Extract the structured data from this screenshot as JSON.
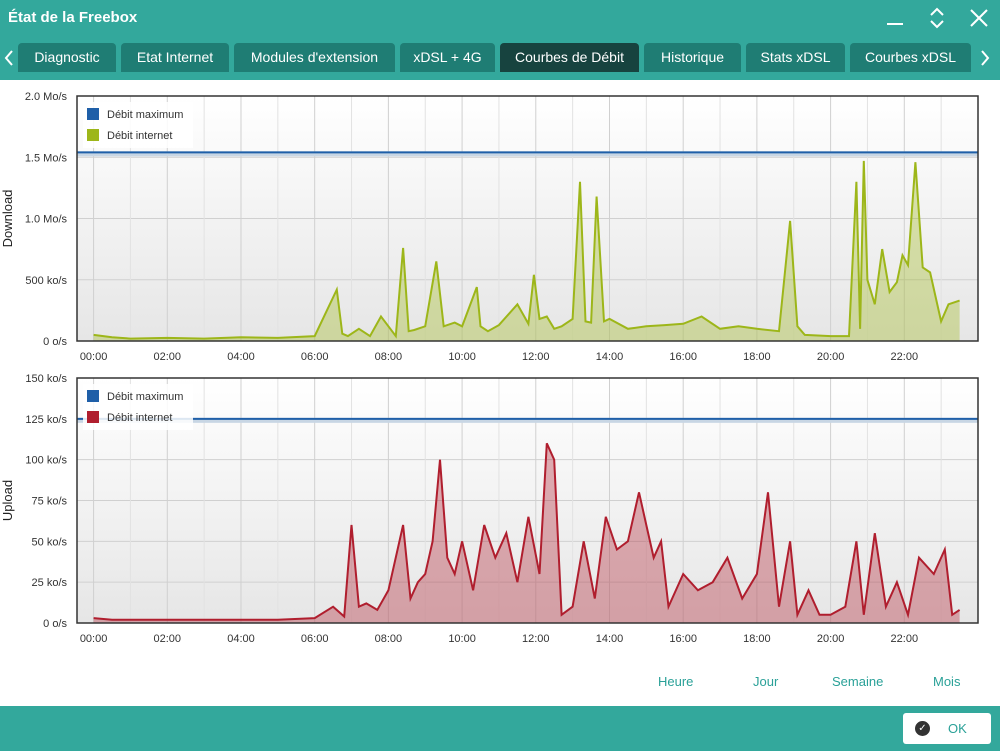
{
  "window": {
    "title": "État de la Freebox"
  },
  "tabs": [
    {
      "label": "Diagnostic"
    },
    {
      "label": "Etat Internet"
    },
    {
      "label": "Modules d'extension"
    },
    {
      "label": "xDSL + 4G"
    },
    {
      "label": "Courbes de Débit",
      "active": true
    },
    {
      "label": "Historique"
    },
    {
      "label": "Stats xDSL"
    },
    {
      "label": "Courbes xDSL"
    }
  ],
  "colors": {
    "accent": "#33a89c",
    "tab": "#1f7d74",
    "tab_active": "#17433f",
    "max_line": "#1f5fa8",
    "download": "#9db619",
    "upload": "#b01e2e"
  },
  "chart_data": [
    {
      "type": "area",
      "ylabel": "Download",
      "y_ticks": [
        "0 o/s",
        "500 ko/s",
        "1.0 Mo/s",
        "1.5 Mo/s",
        "2.0 Mo/s"
      ],
      "ylim": [
        0,
        2000
      ],
      "x_ticks": [
        "00:00",
        "02:00",
        "04:00",
        "06:00",
        "08:00",
        "10:00",
        "12:00",
        "14:00",
        "16:00",
        "18:00",
        "20:00",
        "22:00"
      ],
      "xlim": [
        0,
        24
      ],
      "legend": [
        {
          "name": "Débit maximum",
          "color": "#1f5fa8"
        },
        {
          "name": "Débit internet",
          "color": "#9db619"
        }
      ],
      "max_value": 1540,
      "series": [
        {
          "name": "Débit internet",
          "x": [
            0,
            0.5,
            1,
            2,
            3,
            4,
            5,
            6,
            6.6,
            6.75,
            6.9,
            7.2,
            7.5,
            7.8,
            8.2,
            8.4,
            8.55,
            8.7,
            9,
            9.3,
            9.5,
            9.8,
            10,
            10.4,
            10.5,
            10.7,
            11,
            11.5,
            11.8,
            11.95,
            12.1,
            12.3,
            12.5,
            12.7,
            13,
            13.2,
            13.35,
            13.5,
            13.65,
            13.85,
            14,
            14.5,
            15,
            15.5,
            16,
            16.5,
            17,
            17.5,
            18,
            18.6,
            18.9,
            19.1,
            19.3,
            20,
            20.5,
            20.7,
            20.8,
            20.9,
            21,
            21.2,
            21.4,
            21.6,
            21.8,
            21.95,
            22.1,
            22.3,
            22.5,
            22.7,
            23,
            23.2,
            23.5
          ],
          "values": [
            50,
            30,
            20,
            25,
            20,
            30,
            25,
            40,
            420,
            60,
            40,
            100,
            40,
            200,
            40,
            760,
            80,
            90,
            120,
            650,
            120,
            150,
            120,
            440,
            120,
            80,
            130,
            300,
            140,
            540,
            180,
            200,
            100,
            120,
            180,
            1300,
            160,
            150,
            1180,
            160,
            180,
            100,
            120,
            130,
            140,
            200,
            100,
            120,
            100,
            80,
            980,
            120,
            50,
            40,
            40,
            1300,
            100,
            1470,
            500,
            300,
            750,
            400,
            480,
            700,
            620,
            1460,
            600,
            560,
            160,
            300,
            330
          ]
        }
      ]
    },
    {
      "type": "area",
      "ylabel": "Upload",
      "y_ticks": [
        "0 o/s",
        "25 ko/s",
        "50 ko/s",
        "75 ko/s",
        "100 ko/s",
        "125 ko/s",
        "150 ko/s"
      ],
      "ylim": [
        0,
        150
      ],
      "x_ticks": [
        "00:00",
        "02:00",
        "04:00",
        "06:00",
        "08:00",
        "10:00",
        "12:00",
        "14:00",
        "16:00",
        "18:00",
        "20:00",
        "22:00"
      ],
      "xlim": [
        0,
        24
      ],
      "legend": [
        {
          "name": "Débit maximum",
          "color": "#1f5fa8"
        },
        {
          "name": "Débit internet",
          "color": "#b01e2e"
        }
      ],
      "max_value": 125,
      "series": [
        {
          "name": "Débit internet",
          "x": [
            0,
            0.5,
            1,
            2,
            3,
            4,
            5,
            6,
            6.5,
            6.8,
            7.0,
            7.2,
            7.4,
            7.7,
            8.0,
            8.4,
            8.6,
            8.8,
            9.0,
            9.2,
            9.4,
            9.6,
            9.8,
            10.0,
            10.3,
            10.6,
            10.9,
            11.2,
            11.5,
            11.8,
            12.1,
            12.3,
            12.5,
            12.7,
            13,
            13.3,
            13.6,
            13.9,
            14.2,
            14.5,
            14.8,
            15.0,
            15.2,
            15.4,
            15.6,
            16,
            16.4,
            16.8,
            17.2,
            17.6,
            18.0,
            18.3,
            18.6,
            18.9,
            19.1,
            19.4,
            19.7,
            20,
            20.4,
            20.7,
            20.9,
            21.2,
            21.5,
            21.8,
            22.1,
            22.4,
            22.8,
            23.1,
            23.3,
            23.5
          ],
          "values": [
            3,
            2,
            2,
            2,
            2,
            2,
            2,
            3,
            10,
            4,
            60,
            10,
            12,
            8,
            20,
            60,
            15,
            25,
            30,
            50,
            100,
            40,
            30,
            50,
            20,
            60,
            40,
            55,
            25,
            65,
            30,
            110,
            100,
            5,
            10,
            50,
            15,
            65,
            45,
            50,
            80,
            60,
            40,
            50,
            10,
            30,
            20,
            25,
            40,
            15,
            30,
            80,
            10,
            50,
            5,
            20,
            5,
            5,
            10,
            50,
            5,
            55,
            10,
            25,
            5,
            40,
            30,
            45,
            5,
            8
          ]
        }
      ]
    }
  ],
  "range_links": [
    "Heure",
    "Jour",
    "Semaine",
    "Mois"
  ],
  "footer": {
    "ok_label": "OK"
  }
}
